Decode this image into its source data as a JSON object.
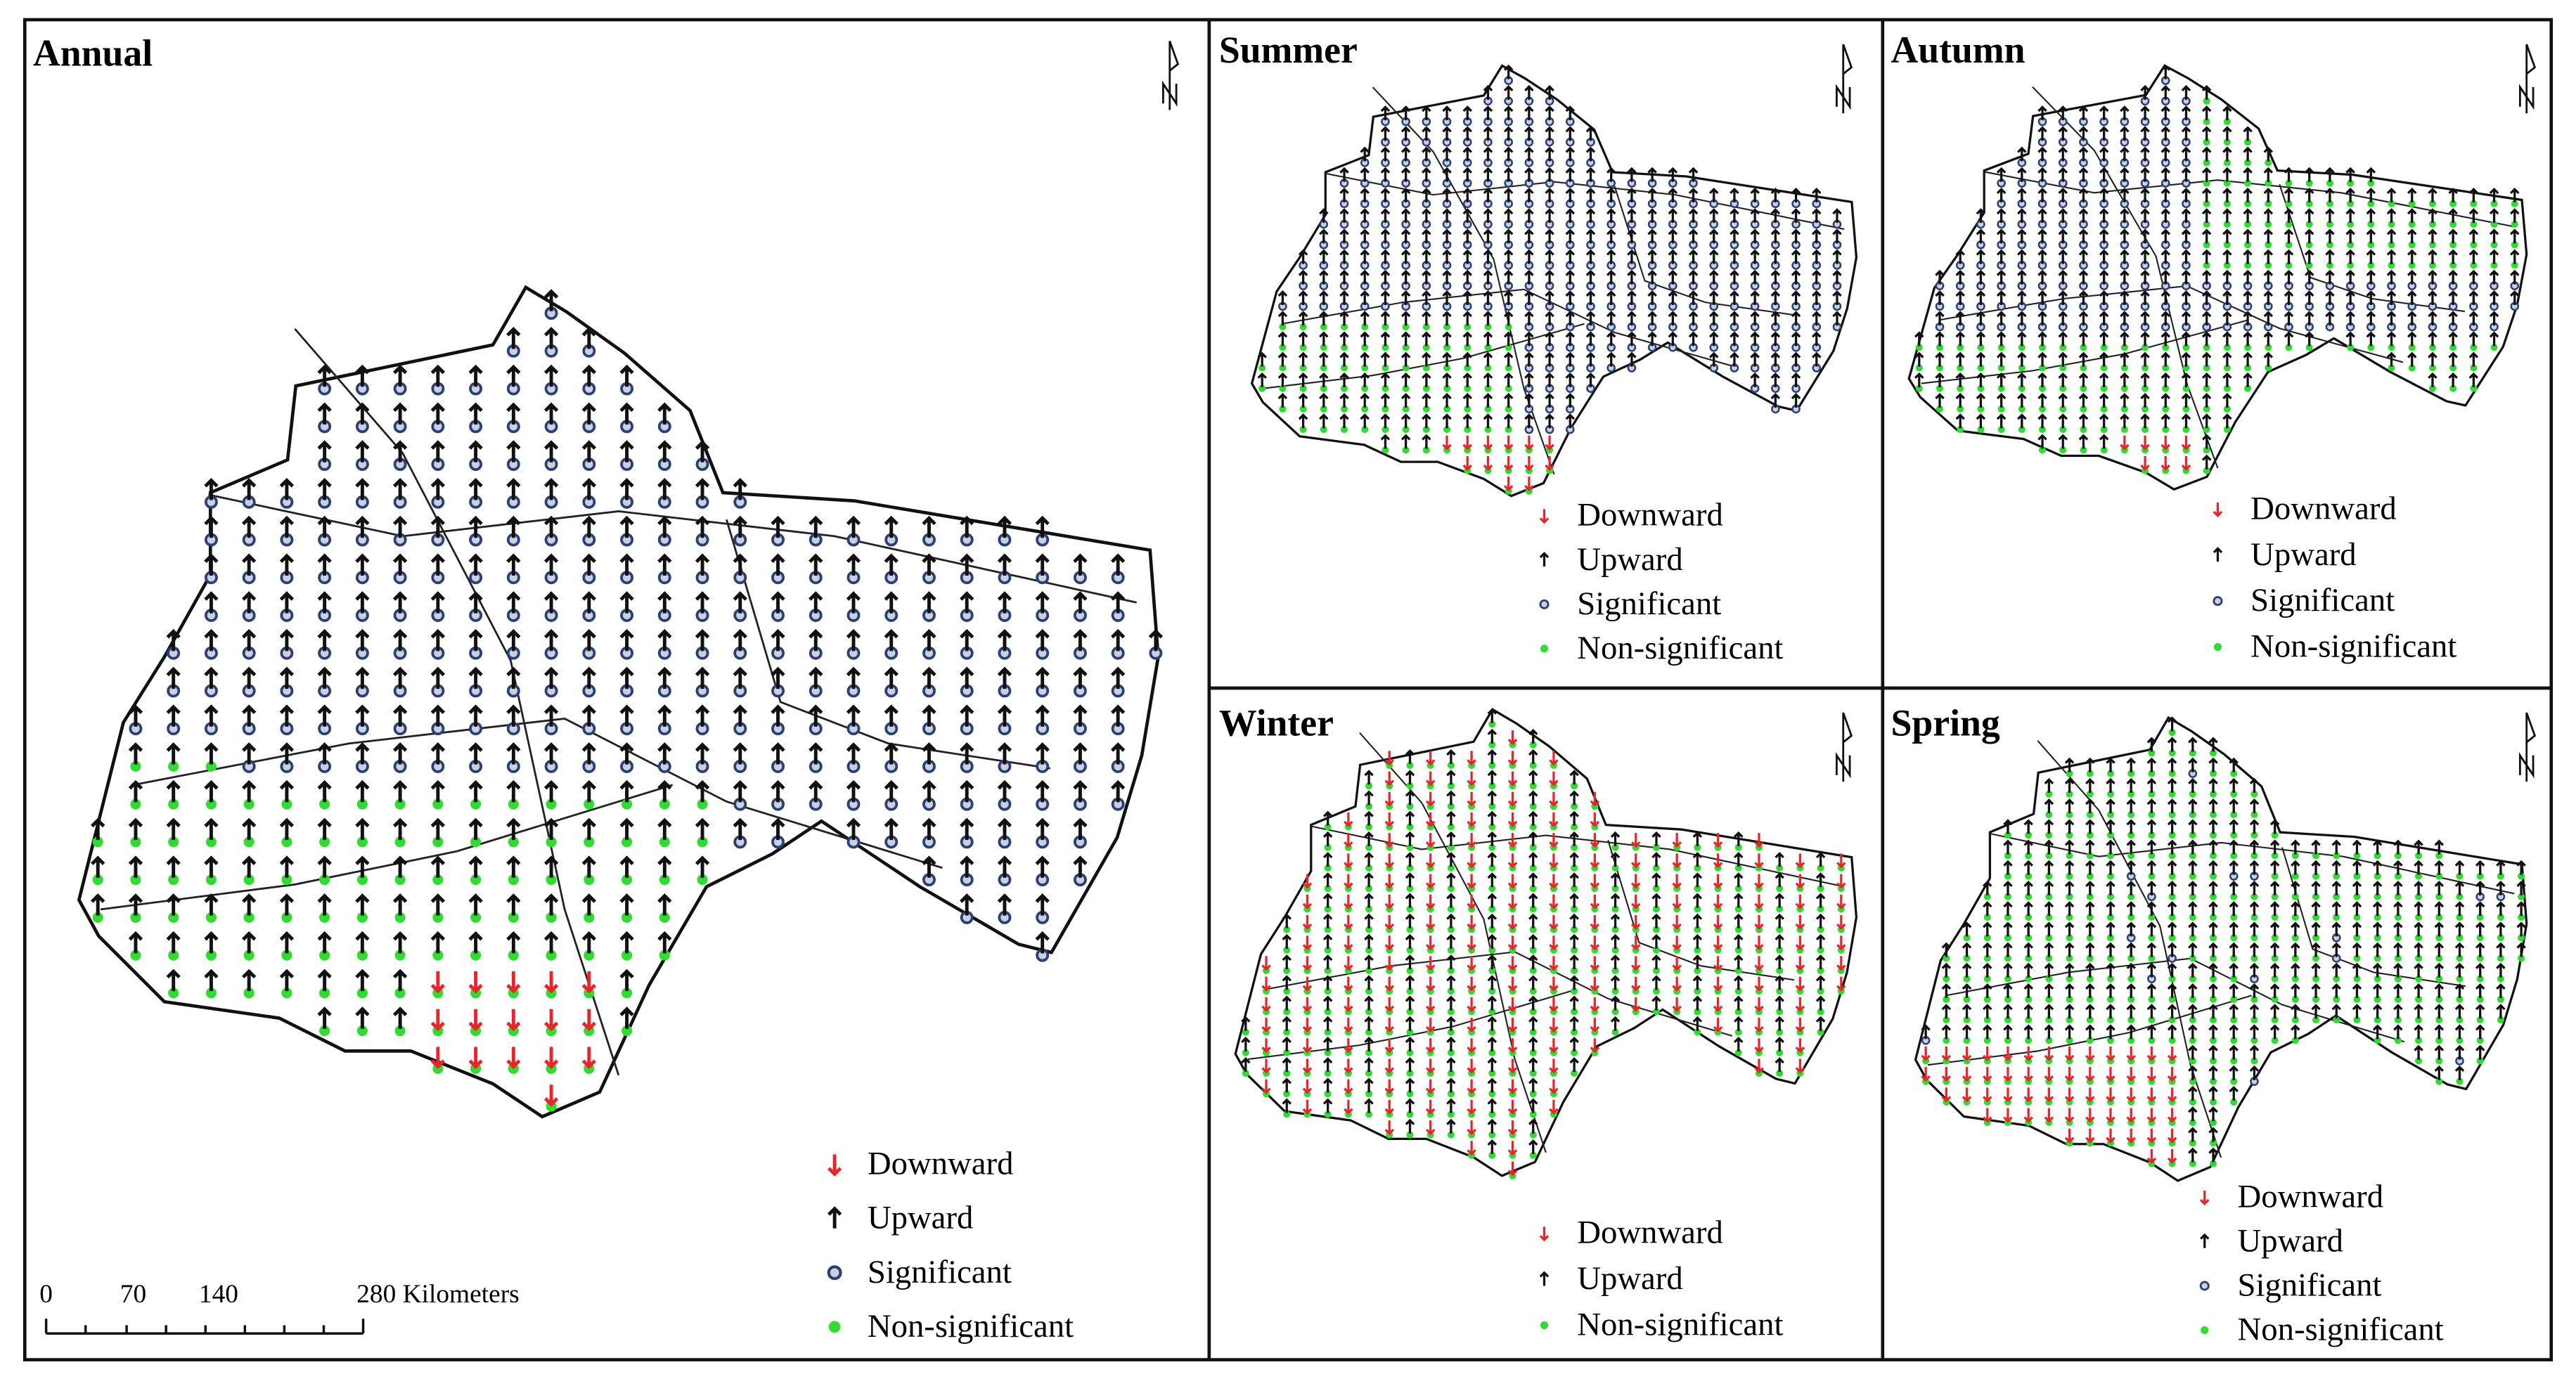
{
  "panels": [
    {
      "title": "Annual",
      "legend": [
        {
          "label": "Downward",
          "marker": "arrow-down",
          "color": "#e8252a"
        },
        {
          "label": "Upward",
          "marker": "arrow-up",
          "color": "#111111"
        },
        {
          "label": "Significant",
          "marker": "ring",
          "color": "#2b3f72"
        },
        {
          "label": "Non-significant",
          "marker": "dot",
          "color": "#2fdc2f"
        }
      ]
    },
    {
      "title": "Summer",
      "legend": [
        {
          "label": "Downward",
          "marker": "arrow-down",
          "color": "#e8252a"
        },
        {
          "label": "Upward",
          "marker": "arrow-up",
          "color": "#111111"
        },
        {
          "label": "Significant",
          "marker": "ring",
          "color": "#2b3f72"
        },
        {
          "label": "Non-significant",
          "marker": "dot",
          "color": "#2fdc2f"
        }
      ]
    },
    {
      "title": "Autumn",
      "legend": [
        {
          "label": "Downward",
          "marker": "arrow-down",
          "color": "#e8252a"
        },
        {
          "label": "Upward",
          "marker": "arrow-up",
          "color": "#111111"
        },
        {
          "label": "Significant",
          "marker": "ring",
          "color": "#2b3f72"
        },
        {
          "label": "Non-significant",
          "marker": "dot",
          "color": "#2fdc2f"
        }
      ]
    },
    {
      "title": "Winter",
      "legend": [
        {
          "label": "Downward",
          "marker": "arrow-down",
          "color": "#e8252a"
        },
        {
          "label": "Upward",
          "marker": "arrow-up",
          "color": "#111111"
        },
        {
          "label": "Non-significant",
          "marker": "dot",
          "color": "#2fdc2f"
        }
      ]
    },
    {
      "title": "Spring",
      "legend": [
        {
          "label": "Downward",
          "marker": "arrow-down",
          "color": "#e8252a"
        },
        {
          "label": "Upward",
          "marker": "arrow-up",
          "color": "#111111"
        },
        {
          "label": "Significant",
          "marker": "ring",
          "color": "#2b3f72"
        },
        {
          "label": "Non-significant",
          "marker": "dot",
          "color": "#2fdc2f"
        }
      ]
    }
  ],
  "scale_bar": {
    "labels": [
      "0",
      "70",
      "140",
      "280 Kilometers"
    ]
  }
}
